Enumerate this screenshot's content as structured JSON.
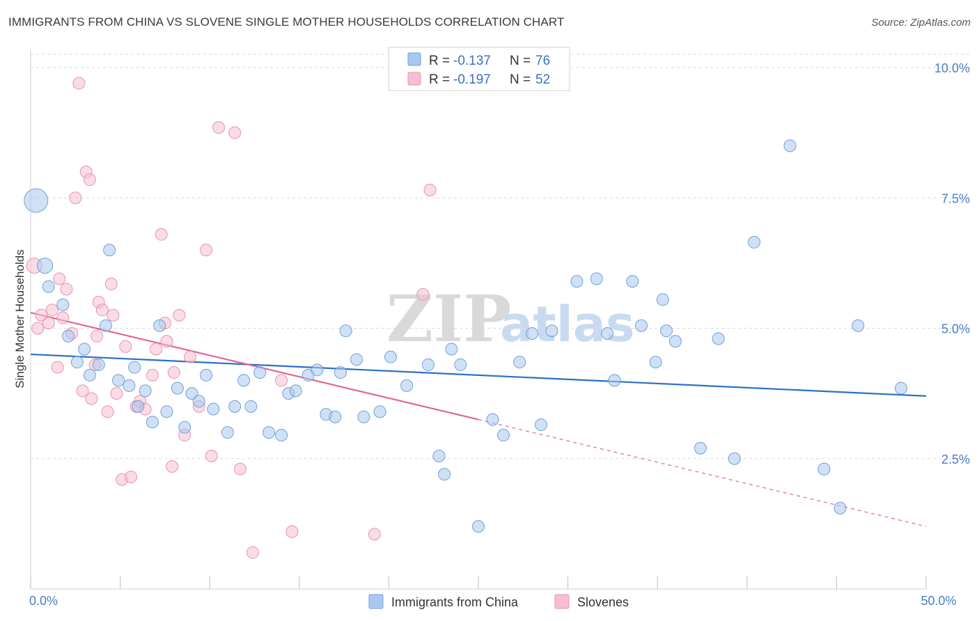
{
  "title": "IMMIGRANTS FROM CHINA VS SLOVENE SINGLE MOTHER HOUSEHOLDS CORRELATION CHART",
  "source": "Source: ZipAtlas.com",
  "colors": {
    "china_fill": "#a9c8ee",
    "china_stroke": "#6f9fd8",
    "china_line": "#2a6fc9",
    "slovene_fill": "#f6bfd0",
    "slovene_stroke": "#e892ad",
    "slovene_line": "#e0668f",
    "grid": "#d9d9d9",
    "axis_text": "#4a7cc7"
  },
  "legend": {
    "china": {
      "r_label": "R = ",
      "r_value": "-0.137",
      "n_label": "N = ",
      "n_value": "76"
    },
    "slovene": {
      "r_label": "R = ",
      "r_value": "-0.197",
      "n_label": "N = ",
      "n_value": "52"
    }
  },
  "bottom_legend": [
    "Immigrants from China",
    "Slovenes"
  ],
  "watermark": {
    "zip": "ZIP",
    "atlas": "atlas"
  },
  "chart_data": {
    "type": "scatter",
    "xlabel": "",
    "ylabel": "Single Mother Households",
    "xlim": [
      0,
      50
    ],
    "ylim": [
      0,
      10.5
    ],
    "x_ticks": [
      {
        "value": 0,
        "label": "0.0%"
      },
      {
        "value": 50,
        "label": "50.0%"
      }
    ],
    "x_minor_ticks": [
      0,
      5,
      10,
      15,
      20,
      25,
      30,
      35,
      40,
      45,
      50
    ],
    "y_ticks": [
      {
        "value": 2.5,
        "label": "2.5%"
      },
      {
        "value": 5.0,
        "label": "5.0%"
      },
      {
        "value": 7.5,
        "label": "7.5%"
      },
      {
        "value": 10.0,
        "label": "10.0%"
      }
    ],
    "grid": true,
    "legend_position": "top-center",
    "series": [
      {
        "name": "Immigrants from China",
        "r": -0.137,
        "n": 76,
        "trend": {
          "x0": 0,
          "y0": 4.5,
          "x1": 50,
          "y1": 3.7
        },
        "points": [
          [
            0.3,
            7.45,
            3
          ],
          [
            0.8,
            6.2,
            2
          ],
          [
            1.0,
            5.8,
            1
          ],
          [
            1.8,
            5.45,
            1
          ],
          [
            2.1,
            4.85,
            1
          ],
          [
            2.6,
            4.35,
            1
          ],
          [
            3.0,
            4.6,
            1
          ],
          [
            3.3,
            4.1,
            1
          ],
          [
            3.8,
            4.3,
            1
          ],
          [
            4.2,
            5.05,
            1
          ],
          [
            4.4,
            6.5,
            1
          ],
          [
            4.9,
            4.0,
            1
          ],
          [
            5.5,
            3.9,
            1
          ],
          [
            5.8,
            4.25,
            1
          ],
          [
            6.0,
            3.5,
            1
          ],
          [
            6.4,
            3.8,
            1
          ],
          [
            6.8,
            3.2,
            1
          ],
          [
            7.2,
            5.05,
            1
          ],
          [
            7.6,
            3.4,
            1
          ],
          [
            8.2,
            3.85,
            1
          ],
          [
            8.6,
            3.1,
            1
          ],
          [
            9.0,
            3.75,
            1
          ],
          [
            9.4,
            3.6,
            1
          ],
          [
            9.8,
            4.1,
            1
          ],
          [
            10.2,
            3.45,
            1
          ],
          [
            11.0,
            3.0,
            1
          ],
          [
            11.4,
            3.5,
            1
          ],
          [
            11.9,
            4.0,
            1
          ],
          [
            12.3,
            3.5,
            1
          ],
          [
            12.8,
            4.15,
            1
          ],
          [
            13.3,
            3.0,
            1
          ],
          [
            14.0,
            2.95,
            1
          ],
          [
            14.4,
            3.75,
            1
          ],
          [
            14.8,
            3.8,
            1
          ],
          [
            15.5,
            4.1,
            1
          ],
          [
            16.0,
            4.2,
            1
          ],
          [
            16.5,
            3.35,
            1
          ],
          [
            17.0,
            3.3,
            1
          ],
          [
            17.3,
            4.15,
            1
          ],
          [
            17.6,
            4.95,
            1
          ],
          [
            18.2,
            4.4,
            1
          ],
          [
            18.6,
            3.3,
            1
          ],
          [
            19.5,
            3.4,
            1
          ],
          [
            20.1,
            4.45,
            1
          ],
          [
            21.0,
            3.9,
            1
          ],
          [
            22.2,
            4.3,
            1
          ],
          [
            22.8,
            2.55,
            1
          ],
          [
            23.5,
            4.6,
            1
          ],
          [
            24.0,
            4.3,
            1
          ],
          [
            25.0,
            1.2,
            1
          ],
          [
            25.8,
            3.25,
            1
          ],
          [
            26.4,
            2.95,
            1
          ],
          [
            27.3,
            4.35,
            1
          ],
          [
            28.0,
            4.9,
            1
          ],
          [
            28.5,
            3.15,
            1
          ],
          [
            29.1,
            4.95,
            1
          ],
          [
            30.5,
            5.9,
            1
          ],
          [
            31.6,
            5.95,
            1
          ],
          [
            32.2,
            4.9,
            1
          ],
          [
            32.6,
            4.0,
            1
          ],
          [
            33.6,
            5.9,
            1
          ],
          [
            34.1,
            5.05,
            1
          ],
          [
            34.9,
            4.35,
            1
          ],
          [
            35.5,
            4.95,
            1
          ],
          [
            35.3,
            5.55,
            1
          ],
          [
            37.4,
            2.7,
            1
          ],
          [
            38.4,
            4.8,
            1
          ],
          [
            39.3,
            2.5,
            1
          ],
          [
            40.4,
            6.65,
            1
          ],
          [
            42.4,
            8.5,
            1
          ],
          [
            44.3,
            2.3,
            1
          ],
          [
            45.2,
            1.55,
            1
          ],
          [
            46.2,
            5.05,
            1
          ],
          [
            48.6,
            3.85,
            1
          ],
          [
            36.0,
            4.75,
            1
          ],
          [
            23.1,
            2.2,
            1
          ]
        ]
      },
      {
        "name": "Slovenes",
        "r": -0.197,
        "n": 52,
        "trend": {
          "x0": 0,
          "y0": 5.3,
          "x1": 25,
          "y1": 3.25
        },
        "trend_dashed": {
          "x0": 25,
          "y0": 3.25,
          "x1": 50,
          "y1": 1.2
        },
        "points": [
          [
            0.2,
            6.2,
            2
          ],
          [
            0.4,
            5.0,
            1
          ],
          [
            0.6,
            5.25,
            1
          ],
          [
            1.0,
            5.1,
            1
          ],
          [
            1.2,
            5.35,
            1
          ],
          [
            1.5,
            4.25,
            1
          ],
          [
            1.6,
            5.95,
            1
          ],
          [
            1.8,
            5.2,
            1
          ],
          [
            2.0,
            5.75,
            1
          ],
          [
            2.3,
            4.9,
            1
          ],
          [
            2.5,
            7.5,
            1
          ],
          [
            2.7,
            9.7,
            1
          ],
          [
            2.9,
            3.8,
            1
          ],
          [
            3.1,
            8.0,
            1
          ],
          [
            3.3,
            7.85,
            1
          ],
          [
            3.4,
            3.65,
            1
          ],
          [
            3.6,
            4.3,
            1
          ],
          [
            3.8,
            5.5,
            1
          ],
          [
            4.0,
            5.35,
            1
          ],
          [
            4.3,
            3.4,
            1
          ],
          [
            4.5,
            5.85,
            1
          ],
          [
            4.6,
            5.25,
            1
          ],
          [
            4.8,
            3.75,
            1
          ],
          [
            5.1,
            2.1,
            1
          ],
          [
            5.3,
            4.65,
            1
          ],
          [
            5.6,
            2.15,
            1
          ],
          [
            5.9,
            3.5,
            1
          ],
          [
            6.1,
            3.6,
            1
          ],
          [
            6.4,
            3.45,
            1
          ],
          [
            6.8,
            4.1,
            1
          ],
          [
            7.0,
            4.6,
            1
          ],
          [
            7.3,
            6.8,
            1
          ],
          [
            7.6,
            4.75,
            1
          ],
          [
            7.9,
            2.35,
            1
          ],
          [
            8.3,
            5.25,
            1
          ],
          [
            8.6,
            2.95,
            1
          ],
          [
            8.9,
            4.45,
            1
          ],
          [
            9.4,
            3.5,
            1
          ],
          [
            9.8,
            6.5,
            1
          ],
          [
            10.1,
            2.55,
            1
          ],
          [
            10.5,
            8.85,
            1
          ],
          [
            11.4,
            8.75,
            1
          ],
          [
            11.7,
            2.3,
            1
          ],
          [
            12.4,
            0.7,
            1
          ],
          [
            14.0,
            4.0,
            1
          ],
          [
            14.6,
            1.1,
            1
          ],
          [
            19.2,
            1.05,
            1
          ],
          [
            21.9,
            5.65,
            1
          ],
          [
            22.3,
            7.65,
            1
          ],
          [
            7.5,
            5.1,
            1
          ],
          [
            3.7,
            4.85,
            1
          ],
          [
            8.0,
            4.15,
            1
          ]
        ]
      }
    ]
  }
}
